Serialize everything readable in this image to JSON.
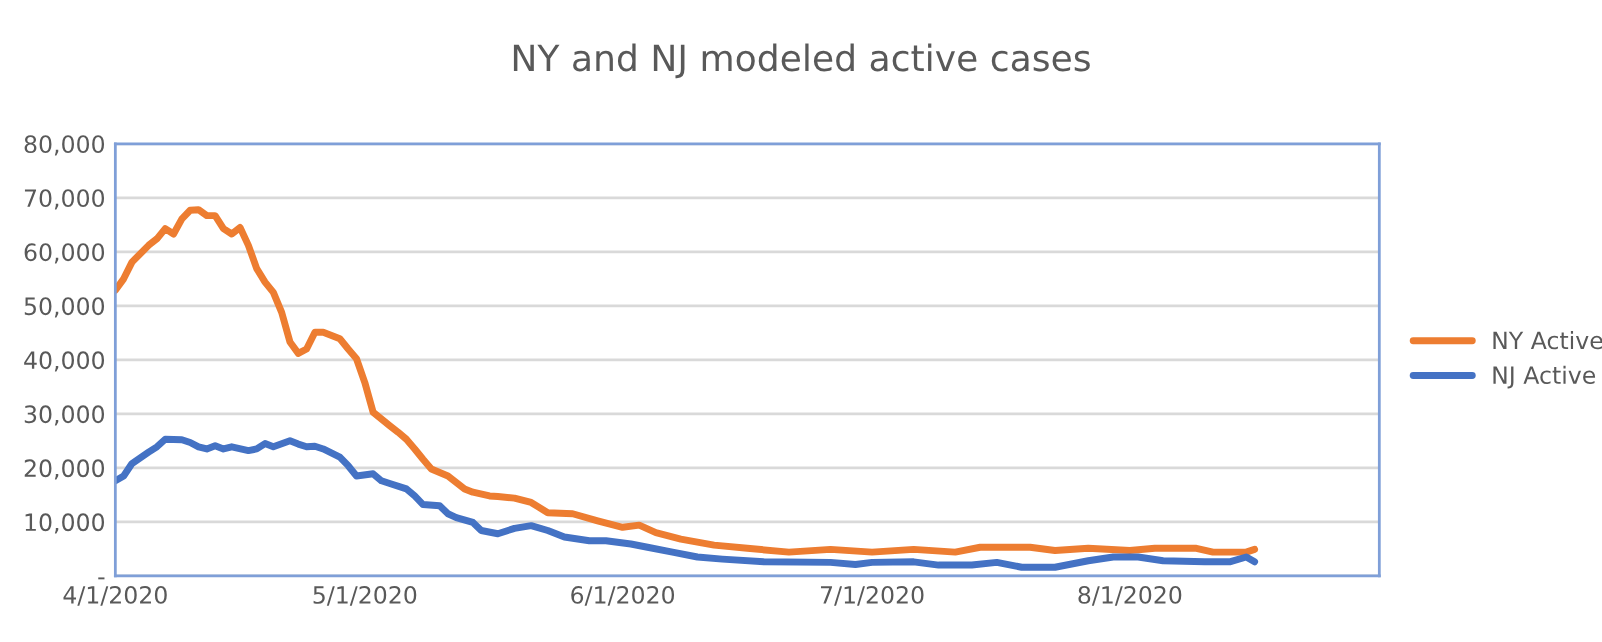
{
  "chart_data": {
    "type": "line",
    "title": "NY and NJ modeled active cases",
    "xlim": [
      "2020-04-01",
      "2020-08-31"
    ],
    "xticks": [
      {
        "value": "2020-04-01",
        "label": "4/1/2020"
      },
      {
        "value": "2020-05-01",
        "label": "5/1/2020"
      },
      {
        "value": "2020-06-01",
        "label": "6/1/2020"
      },
      {
        "value": "2020-07-01",
        "label": "7/1/2020"
      },
      {
        "value": "2020-08-01",
        "label": "8/1/2020"
      }
    ],
    "ylim": [
      0,
      80000
    ],
    "yticks": [
      {
        "value": 0,
        "label": "-"
      },
      {
        "value": 10000,
        "label": "10,000"
      },
      {
        "value": 20000,
        "label": "20,000"
      },
      {
        "value": 30000,
        "label": "30,000"
      },
      {
        "value": 40000,
        "label": "40,000"
      },
      {
        "value": 50000,
        "label": "50,000"
      },
      {
        "value": 60000,
        "label": "60,000"
      },
      {
        "value": 70000,
        "label": "70,000"
      },
      {
        "value": 80000,
        "label": "80,000"
      }
    ],
    "grid": "y",
    "legend": "right",
    "marker": "none",
    "line_style": "solid",
    "series": [
      {
        "name": "NY Active",
        "color": "#ed7d31",
        "x": [
          "2020-04-01",
          "2020-04-02",
          "2020-04-03",
          "2020-04-05",
          "2020-04-06",
          "2020-04-07",
          "2020-04-08",
          "2020-04-09",
          "2020-04-10",
          "2020-04-11",
          "2020-04-12",
          "2020-04-13",
          "2020-04-14",
          "2020-04-15",
          "2020-04-16",
          "2020-04-17",
          "2020-04-18",
          "2020-04-19",
          "2020-04-20",
          "2020-04-21",
          "2020-04-22",
          "2020-04-23",
          "2020-04-24",
          "2020-04-25",
          "2020-04-26",
          "2020-04-28",
          "2020-04-29",
          "2020-04-30",
          "2020-05-01",
          "2020-05-02",
          "2020-05-04",
          "2020-05-05",
          "2020-05-06",
          "2020-05-07",
          "2020-05-08",
          "2020-05-09",
          "2020-05-11",
          "2020-05-12",
          "2020-05-13",
          "2020-05-14",
          "2020-05-16",
          "2020-05-17",
          "2020-05-19",
          "2020-05-21",
          "2020-05-23",
          "2020-05-26",
          "2020-05-29",
          "2020-06-01",
          "2020-06-03",
          "2020-06-05",
          "2020-06-08",
          "2020-06-12",
          "2020-06-16",
          "2020-06-21",
          "2020-06-26",
          "2020-07-01",
          "2020-07-06",
          "2020-07-11",
          "2020-07-14",
          "2020-07-20",
          "2020-07-23",
          "2020-07-27",
          "2020-08-01",
          "2020-08-04",
          "2020-08-09",
          "2020-08-11",
          "2020-08-15",
          "2020-08-16"
        ],
        "values": [
          52900,
          55000,
          58100,
          61200,
          62400,
          64300,
          63300,
          66100,
          67700,
          67800,
          66700,
          66700,
          64300,
          63300,
          64500,
          61200,
          56900,
          54400,
          52500,
          48800,
          43300,
          41200,
          42000,
          45100,
          45100,
          43900,
          42000,
          40200,
          35800,
          30300,
          27800,
          26600,
          25300,
          23500,
          21600,
          19800,
          18500,
          17300,
          16100,
          15500,
          14800,
          14700,
          14400,
          13600,
          11700,
          11500,
          10200,
          9000,
          9400,
          8000,
          6800,
          5700,
          5100,
          4400,
          4900,
          4400,
          4900,
          4400,
          5300,
          5300,
          4700,
          5100,
          4700,
          5100,
          5100,
          4400,
          4400,
          4900
        ]
      },
      {
        "name": "NJ Active",
        "color": "#4472c4",
        "x": [
          "2020-04-01",
          "2020-04-02",
          "2020-04-03",
          "2020-04-05",
          "2020-04-06",
          "2020-04-07",
          "2020-04-09",
          "2020-04-10",
          "2020-04-11",
          "2020-04-12",
          "2020-04-13",
          "2020-04-14",
          "2020-04-15",
          "2020-04-17",
          "2020-04-18",
          "2020-04-19",
          "2020-04-20",
          "2020-04-22",
          "2020-04-23",
          "2020-04-24",
          "2020-04-25",
          "2020-04-26",
          "2020-04-28",
          "2020-04-29",
          "2020-04-30",
          "2020-05-02",
          "2020-05-03",
          "2020-05-04",
          "2020-05-06",
          "2020-05-07",
          "2020-05-08",
          "2020-05-10",
          "2020-05-11",
          "2020-05-12",
          "2020-05-14",
          "2020-05-15",
          "2020-05-17",
          "2020-05-19",
          "2020-05-21",
          "2020-05-23",
          "2020-05-25",
          "2020-05-28",
          "2020-05-30",
          "2020-06-02",
          "2020-06-04",
          "2020-06-07",
          "2020-06-10",
          "2020-06-13",
          "2020-06-18",
          "2020-06-26",
          "2020-06-29",
          "2020-07-01",
          "2020-07-06",
          "2020-07-09",
          "2020-07-13",
          "2020-07-16",
          "2020-07-19",
          "2020-07-23",
          "2020-07-27",
          "2020-07-30",
          "2020-08-02",
          "2020-08-05",
          "2020-08-10",
          "2020-08-13",
          "2020-08-15",
          "2020-08-16"
        ],
        "values": [
          17600,
          18500,
          20800,
          22900,
          23900,
          25300,
          25200,
          24700,
          23900,
          23500,
          24100,
          23500,
          23900,
          23200,
          23500,
          24500,
          23900,
          25000,
          24400,
          23900,
          24000,
          23500,
          22000,
          20400,
          18500,
          18900,
          17600,
          17100,
          16100,
          14800,
          13200,
          13000,
          11500,
          10800,
          9900,
          8400,
          7800,
          8800,
          9300,
          8400,
          7200,
          6500,
          6500,
          5900,
          5300,
          4400,
          3500,
          3100,
          2600,
          2500,
          2100,
          2500,
          2600,
          2000,
          2000,
          2500,
          1600,
          1600,
          2800,
          3500,
          3500,
          2800,
          2600,
          2600,
          3500,
          2600
        ]
      }
    ]
  }
}
